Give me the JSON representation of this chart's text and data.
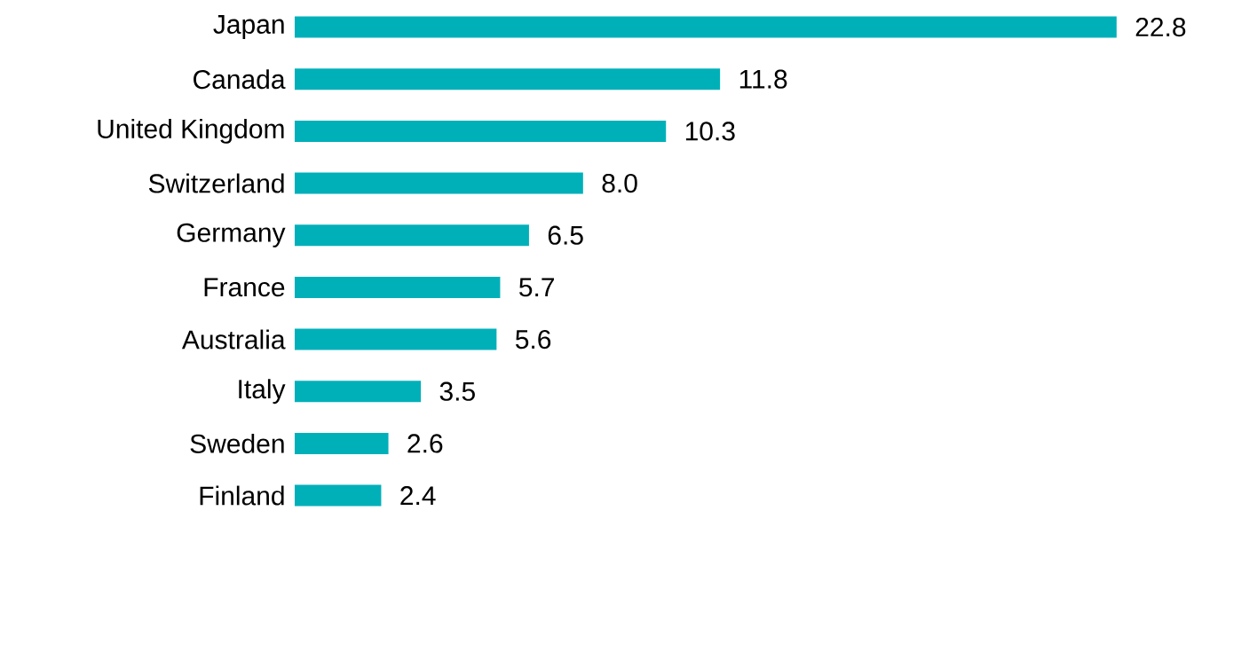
{
  "chart_data": {
    "type": "bar",
    "orientation": "horizontal",
    "color": "#00b0b9",
    "categories": [
      "Japan",
      "Canada",
      "United Kingdom",
      "Switzerland",
      "Germany",
      "France",
      "Australia",
      "Italy",
      "Sweden",
      "Finland"
    ],
    "values": [
      22.8,
      11.8,
      10.3,
      8.0,
      6.5,
      5.7,
      5.6,
      3.5,
      2.6,
      2.4
    ],
    "value_labels": [
      "22.8",
      "11.8",
      "10.3",
      "8.0",
      "6.5",
      "5.7",
      "5.6",
      "3.5",
      "2.6",
      "2.4"
    ]
  }
}
